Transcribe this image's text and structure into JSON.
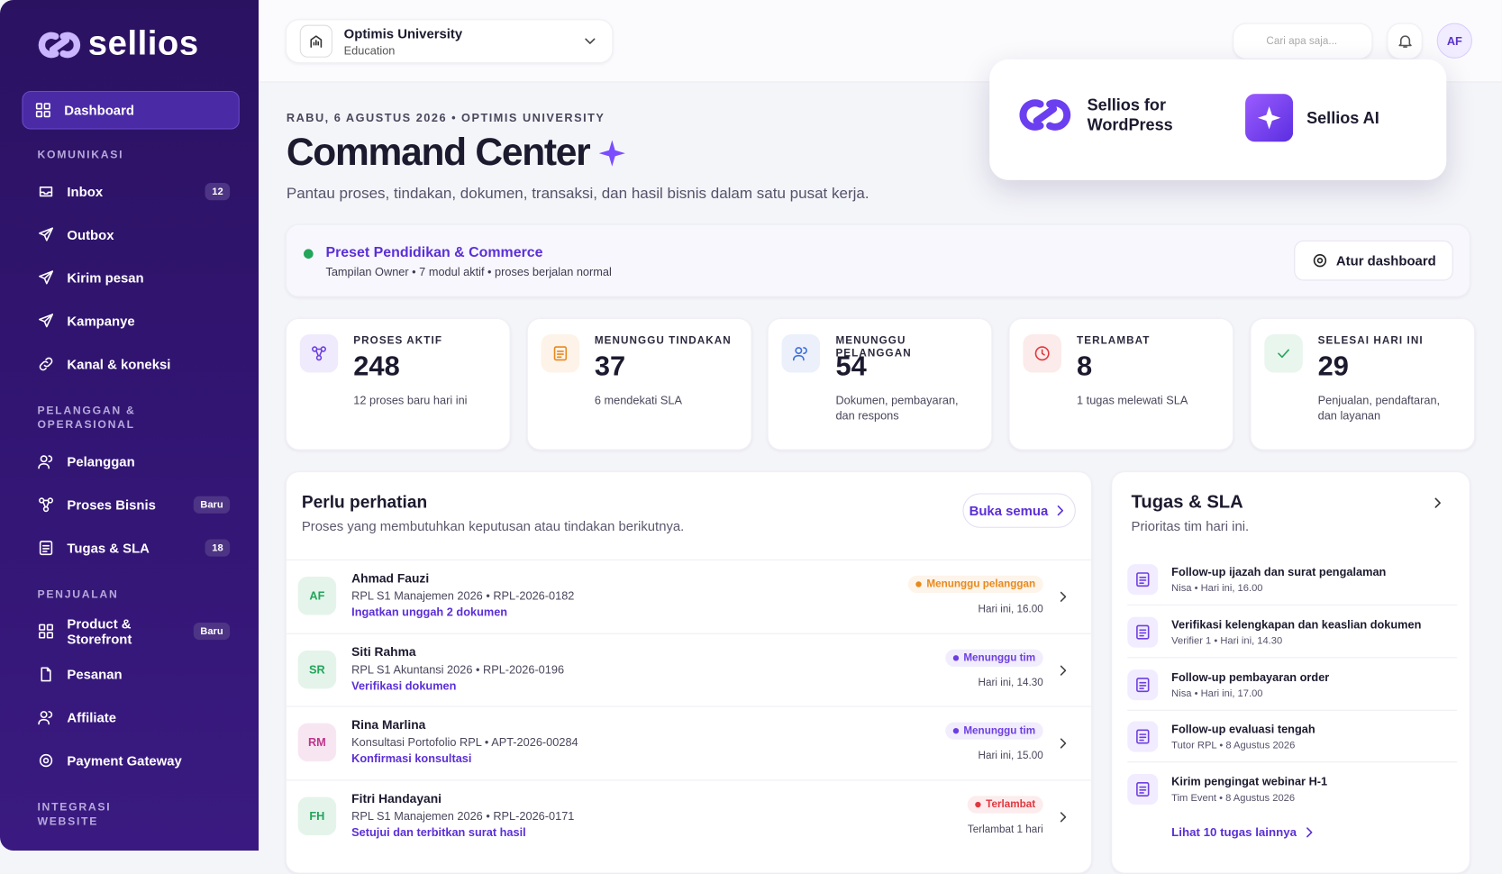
{
  "sidebar": {
    "logo": "sellios",
    "sections": [
      {
        "items": [
          {
            "label": "Dashboard"
          }
        ]
      },
      {
        "title": "KOMUNIKASI",
        "items": [
          {
            "label": "Inbox",
            "badge": 12
          },
          {
            "label": "Outbox"
          },
          {
            "label": "Kirim pesan"
          },
          {
            "label": "Kampanye"
          },
          {
            "label": "Kanal & koneksi"
          }
        ]
      },
      {
        "title": "PELANGGAN & OPERASIONAL",
        "items": [
          {
            "label": "Pelanggan"
          },
          {
            "label": "Proses Bisnis",
            "badge": "Baru"
          },
          {
            "label": "Tugas & SLA",
            "badge": 18
          }
        ]
      },
      {
        "title": "PENJUALAN",
        "items": [
          {
            "label": "Product & Storefront",
            "badge": "Baru"
          },
          {
            "label": "Pesanan"
          },
          {
            "label": "Affiliate"
          },
          {
            "label": "Payment Gateway"
          }
        ]
      },
      {
        "title": "INTEGRASI WEBSITE",
        "items": []
      }
    ]
  },
  "topbar": {
    "org_name": "Optimis University",
    "org_type": "Education",
    "search_placeholder": "Cari apa saja...",
    "avatar": "AF"
  },
  "popup": {
    "items": [
      {
        "label": "Sellios for WordPress"
      },
      {
        "label": "Sellios AI"
      }
    ]
  },
  "header": {
    "date_line": "RABU, 6 AGUSTUS 2026 • OPTIMIS UNIVERSITY",
    "title": "Command Center",
    "subtitle": "Pantau proses, tindakan, dokumen, transaksi, dan hasil bisnis dalam satu pusat kerja."
  },
  "preset": {
    "title": "Preset Pendidikan & Commerce",
    "subtitle": "Tampilan Owner • 7 modul aktif • proses berjalan normal",
    "button": "Atur dashboard"
  },
  "stats": [
    {
      "label": "PROSES AKTIF",
      "value": 248,
      "note": "12 proses baru hari ini",
      "color": "#6d3fe0"
    },
    {
      "label": "MENUNGGU TINDAKAN",
      "value": 37,
      "note": "6 mendekati SLA",
      "color": "#e8891c"
    },
    {
      "label": "MENUNGGU PELANGGAN",
      "value": 54,
      "note": "Dokumen, pembayaran, dan respons",
      "color": "#3d6fd9"
    },
    {
      "label": "TERLAMBAT",
      "value": 8,
      "note": "1 tugas melewati SLA",
      "color": "#e0383e"
    },
    {
      "label": "SELESAI HARI INI",
      "value": 29,
      "note": "Penjualan, pendaftaran, dan layanan",
      "color": "#23a55a"
    }
  ],
  "attention": {
    "title": "Perlu perhatian",
    "subtitle": "Proses yang membutuhkan keputusan atau tindakan berikutnya.",
    "button": "Buka semua",
    "rows": [
      {
        "initials": "AF",
        "name": "Ahmad Fauzi",
        "meta": "RPL S1 Manajemen 2026 • RPL-2026-0182",
        "action": "Ingatkan unggah 2 dokumen",
        "status": "Menunggu pelanggan",
        "time": "Hari ini, 16.00",
        "status_color": "#e8891c",
        "avatar_color": "#23a55a"
      },
      {
        "initials": "SR",
        "name": "Siti Rahma",
        "meta": "RPL S1 Akuntansi 2026 • RPL-2026-0196",
        "action": "Verifikasi dokumen",
        "status": "Menunggu tim",
        "time": "Hari ini, 14.30",
        "status_color": "#6d3fe0",
        "avatar_color": "#23a55a"
      },
      {
        "initials": "RM",
        "name": "Rina Marlina",
        "meta": "Konsultasi Portofolio RPL • APT-2026-00284",
        "action": "Konfirmasi konsultasi",
        "status": "Menunggu tim",
        "time": "Hari ini, 15.00",
        "status_color": "#6d3fe0",
        "avatar_color": "#c0358c"
      },
      {
        "initials": "FH",
        "name": "Fitri Handayani",
        "meta": "RPL S1 Manajemen 2026 • RPL-2026-0171",
        "action": "Setujui dan terbitkan surat hasil",
        "status": "Terlambat",
        "time": "Terlambat 1 hari",
        "status_color": "#e0383e",
        "avatar_color": "#23a55a"
      }
    ]
  },
  "tasks": {
    "title": "Tugas & SLA",
    "subtitle": "Prioritas tim hari ini.",
    "items": [
      {
        "title": "Follow-up ijazah dan surat pengalaman",
        "meta": "Nisa • Hari ini, 16.00"
      },
      {
        "title": "Verifikasi kelengkapan dan keaslian dokumen",
        "meta": "Verifier 1 • Hari ini, 14.30"
      },
      {
        "title": "Follow-up pembayaran order",
        "meta": "Nisa • Hari ini, 17.00"
      },
      {
        "title": "Follow-up evaluasi tengah",
        "meta": "Tutor RPL • 8 Agustus 2026"
      },
      {
        "title": "Kirim pengingat webinar H-1",
        "meta": "Tim Event • 8 Agustus 2026"
      }
    ],
    "link": "Lihat 10 tugas lainnya"
  }
}
